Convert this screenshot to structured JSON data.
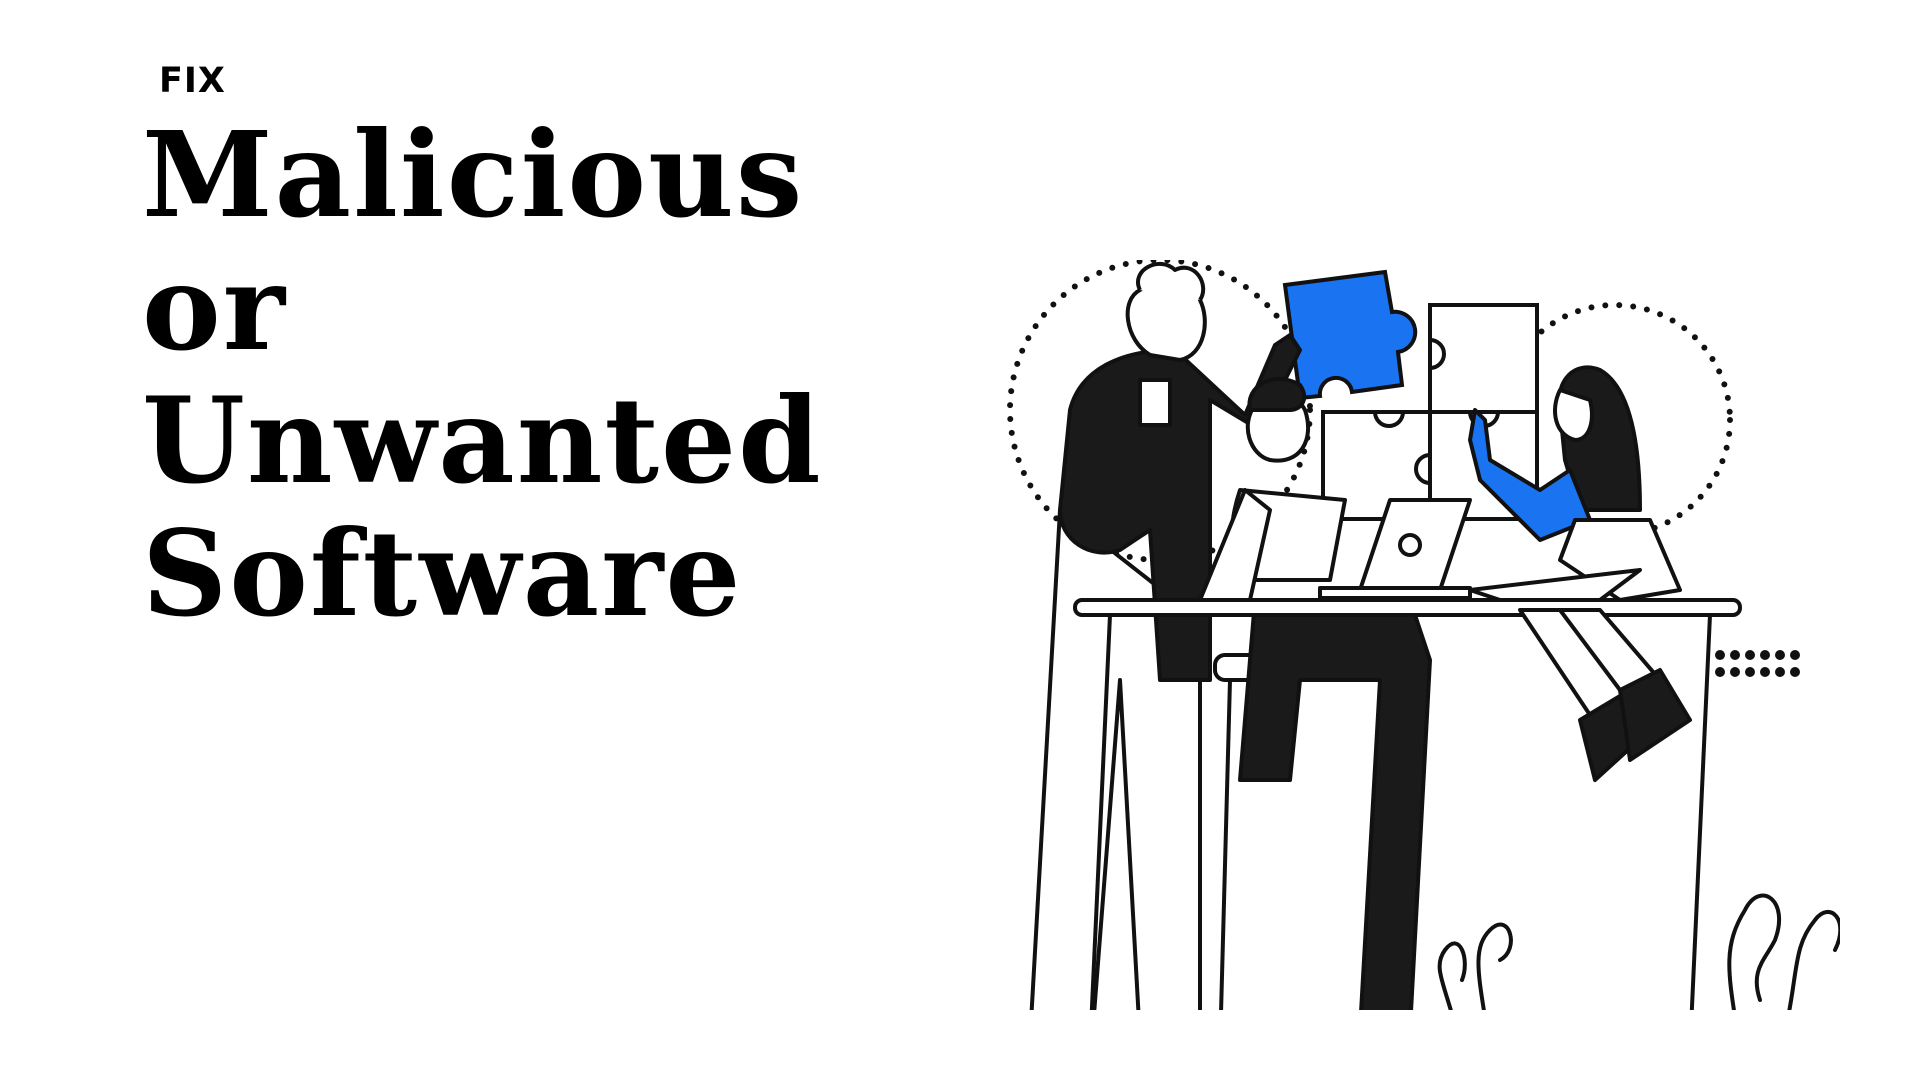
{
  "eyebrow": "FIX",
  "headline": {
    "line1": "Malicious",
    "line2": "or",
    "line3": "Unwanted",
    "line4": "Software"
  },
  "illustration": {
    "accent_color": "#1a73f0",
    "ink_color": "#111111"
  }
}
